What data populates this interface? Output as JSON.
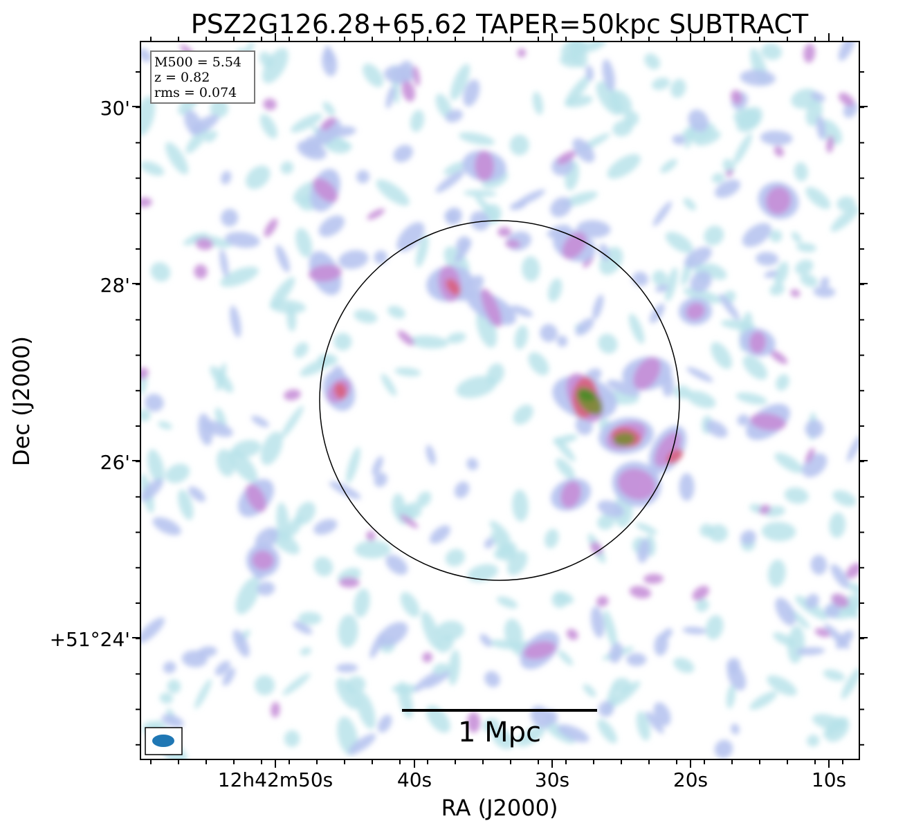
{
  "chart_data": {
    "type": "heatmap",
    "title": "PSZ2G126.28+65.62 TAPER=50kpc SUBTRACT",
    "xlabel": "RA (J2000)",
    "ylabel": "Dec (J2000)",
    "x_ticks": [
      "12h42m50s",
      "40s",
      "30s",
      "20s",
      "10s"
    ],
    "y_ticks": [
      "30'",
      "28'",
      "26'",
      "+51°24'"
    ],
    "info_box": {
      "m500": "M500 = 5.54",
      "z": "z = 0.82",
      "rms": "rms = 0.074"
    },
    "scale_bar_label": "1 Mpc",
    "colormap": [
      "#ffffff",
      "#b9e3ea",
      "#b7c4f0",
      "#c690d8",
      "#d8607c",
      "#7e8a3a",
      "#4c8a2a"
    ],
    "circle_color": "#000000",
    "beam_color": "#1f77b4"
  }
}
